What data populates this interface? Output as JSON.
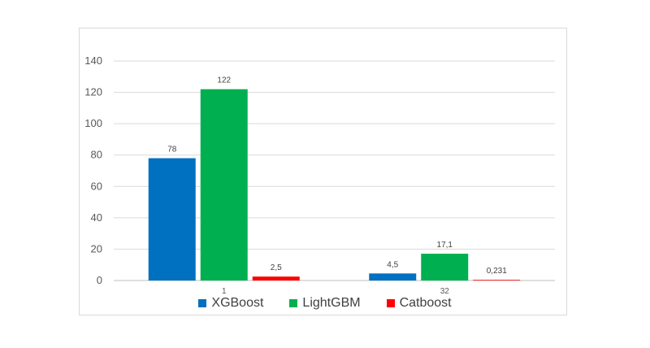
{
  "chart_data": {
    "type": "bar",
    "categories": [
      "1",
      "32"
    ],
    "series": [
      {
        "name": "XGBoost",
        "values": [
          78,
          4.5
        ],
        "labels": [
          "78",
          "4,5"
        ],
        "color": "#0070c0"
      },
      {
        "name": "LightGBM",
        "values": [
          122,
          17.1
        ],
        "labels": [
          "122",
          "17,1"
        ],
        "color": "#00b050"
      },
      {
        "name": "Catboost",
        "values": [
          2.5,
          0.231
        ],
        "labels": [
          "2,5",
          "0,231"
        ],
        "color": "#ff0000"
      }
    ],
    "yticks": [
      "0",
      "20",
      "40",
      "60",
      "80",
      "100",
      "120",
      "140"
    ],
    "ylim": [
      0,
      140
    ],
    "grid": true,
    "legend_position": "bottom",
    "title": "",
    "xlabel": "",
    "ylabel": ""
  }
}
